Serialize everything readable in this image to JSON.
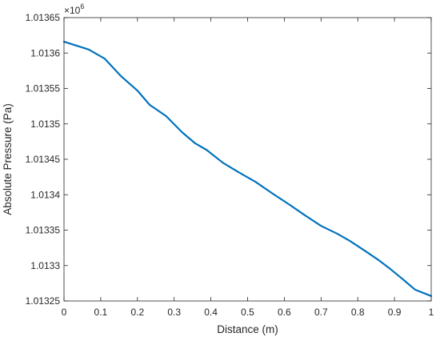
{
  "chart_data": {
    "type": "line",
    "xlabel": "Distance (m)",
    "ylabel": "Absolute Pressure (Pa)",
    "y_exponent_base": "×10",
    "y_exponent_power": "6",
    "xlim": [
      0,
      1
    ],
    "ylim": [
      1.01325,
      1.01365
    ],
    "x_ticks": [
      0,
      0.1,
      0.2,
      0.3,
      0.4,
      0.5,
      0.6,
      0.7,
      0.8,
      0.9,
      1
    ],
    "x_tick_labels": [
      "0",
      "0.1",
      "0.2",
      "0.3",
      "0.4",
      "0.5",
      "0.6",
      "0.7",
      "0.8",
      "0.9",
      "1"
    ],
    "y_ticks": [
      1.01325,
      1.0133,
      1.01335,
      1.0134,
      1.01345,
      1.0135,
      1.01355,
      1.0136,
      1.01365
    ],
    "y_tick_labels": [
      "1.01325",
      "1.0133",
      "1.01335",
      "1.0134",
      "1.01345",
      "1.0135",
      "1.01355",
      "1.0136",
      "1.01365"
    ],
    "grid": false,
    "line_color": "#0072BD",
    "series": [
      {
        "x": [
          0,
          0.067,
          0.111,
          0.156,
          0.2,
          0.233,
          0.278,
          0.322,
          0.356,
          0.389,
          0.433,
          0.478,
          0.522,
          0.567,
          0.611,
          0.656,
          0.7,
          0.744,
          0.778,
          0.822,
          0.856,
          0.889,
          0.922,
          0.956,
          1.0
        ],
        "y": [
          1.013616,
          1.013605,
          1.013592,
          1.013567,
          1.013547,
          1.013527,
          1.013511,
          1.013488,
          1.013473,
          1.013463,
          1.013445,
          1.013431,
          1.013418,
          1.013402,
          1.013387,
          1.013371,
          1.013356,
          1.013345,
          1.013335,
          1.01332,
          1.013308,
          1.013295,
          1.013281,
          1.013266,
          1.013257
        ]
      }
    ]
  }
}
